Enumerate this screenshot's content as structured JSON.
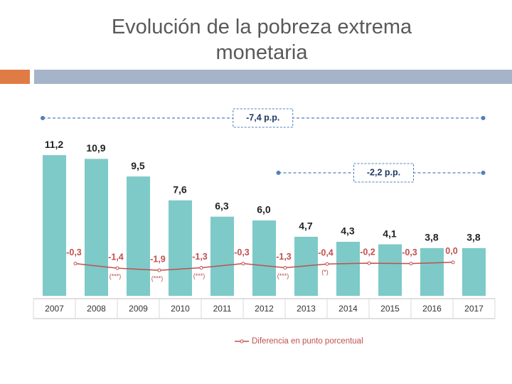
{
  "chart_data": {
    "type": "bar",
    "title": "Evolución de la pobreza extrema monetaria",
    "categories": [
      "2007",
      "2008",
      "2009",
      "2010",
      "2011",
      "2012",
      "2013",
      "2014",
      "2015",
      "2016",
      "2017"
    ],
    "values": [
      11.2,
      10.9,
      9.5,
      7.6,
      6.3,
      6.0,
      4.7,
      4.3,
      4.1,
      3.8,
      3.8
    ],
    "value_labels": [
      "11,2",
      "10,9",
      "9,5",
      "7,6",
      "6,3",
      "6,0",
      "4,7",
      "4,3",
      "4,1",
      "3,8",
      "3,8"
    ],
    "color": "#7ecac8",
    "ylim": [
      0,
      12
    ],
    "line": {
      "name": "Diferencia en punto porcentual",
      "color": "#c0504d",
      "axis": "y2",
      "values": [
        -0.3,
        -1.4,
        -1.9,
        -1.3,
        -0.3,
        -1.3,
        -0.4,
        -0.2,
        -0.3,
        0.0
      ],
      "value_labels": [
        "-0,3",
        "-1,4",
        "-1,9",
        "-1,3",
        "-0,3",
        "-1,3",
        "-0,4",
        "-0,2",
        "-0,3",
        "0,0"
      ],
      "notes": [
        null,
        "(***)",
        "(***)",
        "(***)",
        null,
        "(***)",
        "(*)",
        null,
        null,
        null
      ]
    },
    "y2lim": [
      -8,
      28
    ],
    "annotations": [
      {
        "text": "-7,4 p.p.",
        "from": "2007",
        "to": "2017"
      },
      {
        "text": "-2,2 p.p.",
        "from": "2012",
        "to": "2017"
      }
    ]
  }
}
